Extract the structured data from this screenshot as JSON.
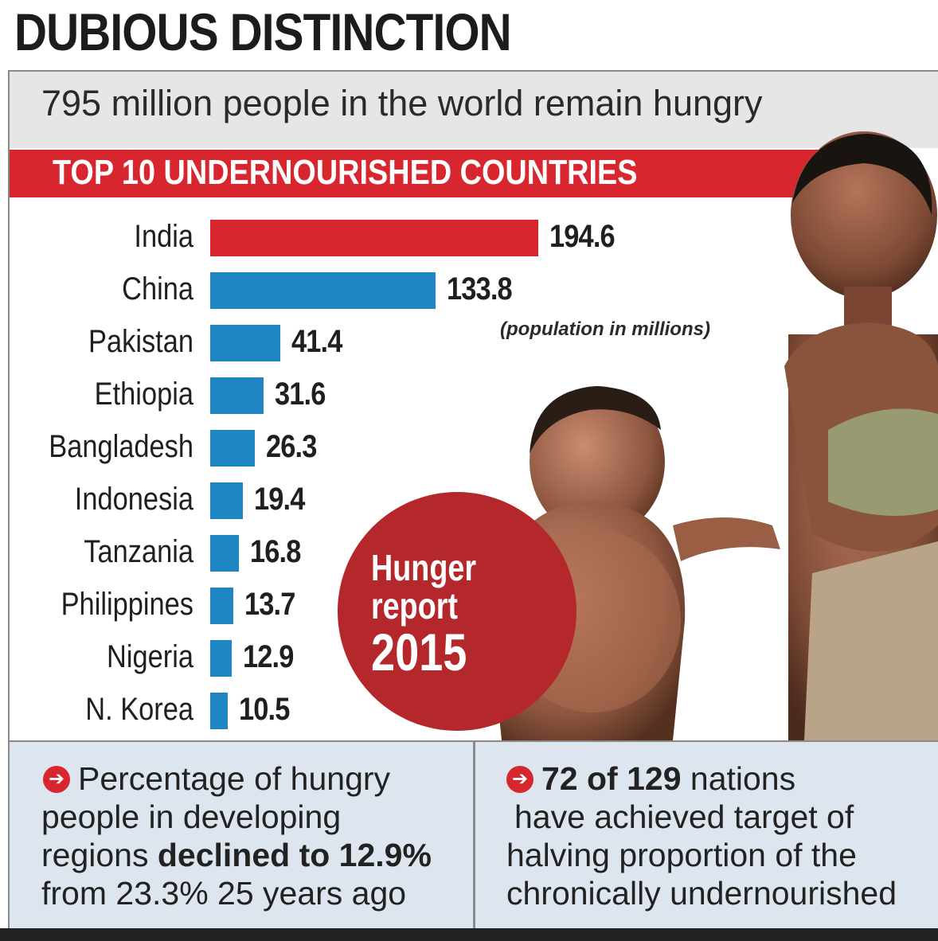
{
  "header": {
    "title": "DUBIOUS DISTINCTION",
    "subtitle": "795 million people in the world remain hungry",
    "band_title": "TOP 10 UNDERNOURISHED COUNTRIES"
  },
  "chart_data": {
    "type": "bar",
    "orientation": "horizontal",
    "title": "TOP 10 UNDERNOURISHED COUNTRIES",
    "units_note": "(population in millions)",
    "categories": [
      "India",
      "China",
      "Pakistan",
      "Ethiopia",
      "Bangladesh",
      "Indonesia",
      "Tanzania",
      "Philippines",
      "Nigeria",
      "N. Korea"
    ],
    "values": [
      194.6,
      133.8,
      41.4,
      31.6,
      26.3,
      19.4,
      16.8,
      13.7,
      12.9,
      10.5
    ],
    "value_labels": [
      "194.6",
      "133.8",
      "41.4",
      "31.6",
      "26.3",
      "19.4",
      "16.8",
      "13.7",
      "12.9",
      "10.5"
    ],
    "highlight_color": "#d7262e",
    "bar_color": "#1f86c3",
    "grid": false
  },
  "badge": {
    "line1": "Hunger",
    "line2": "report",
    "line3": "2015",
    "color": "#b4272b"
  },
  "notes": {
    "left": {
      "l1": "Percentage of hungry",
      "l2": "people in developing",
      "l3_pre": "regions ",
      "l3_bold": "declined to 12.9%",
      "l4": "from 23.3% 25 years ago"
    },
    "right": {
      "l1_bold": "72 of 129",
      "l1_rest": " nations",
      "l2": "have achieved target of",
      "l3": "halving proportion of the",
      "l4": "chronically undernourished"
    },
    "arrow_icon": "arrow-right-circle-icon"
  }
}
